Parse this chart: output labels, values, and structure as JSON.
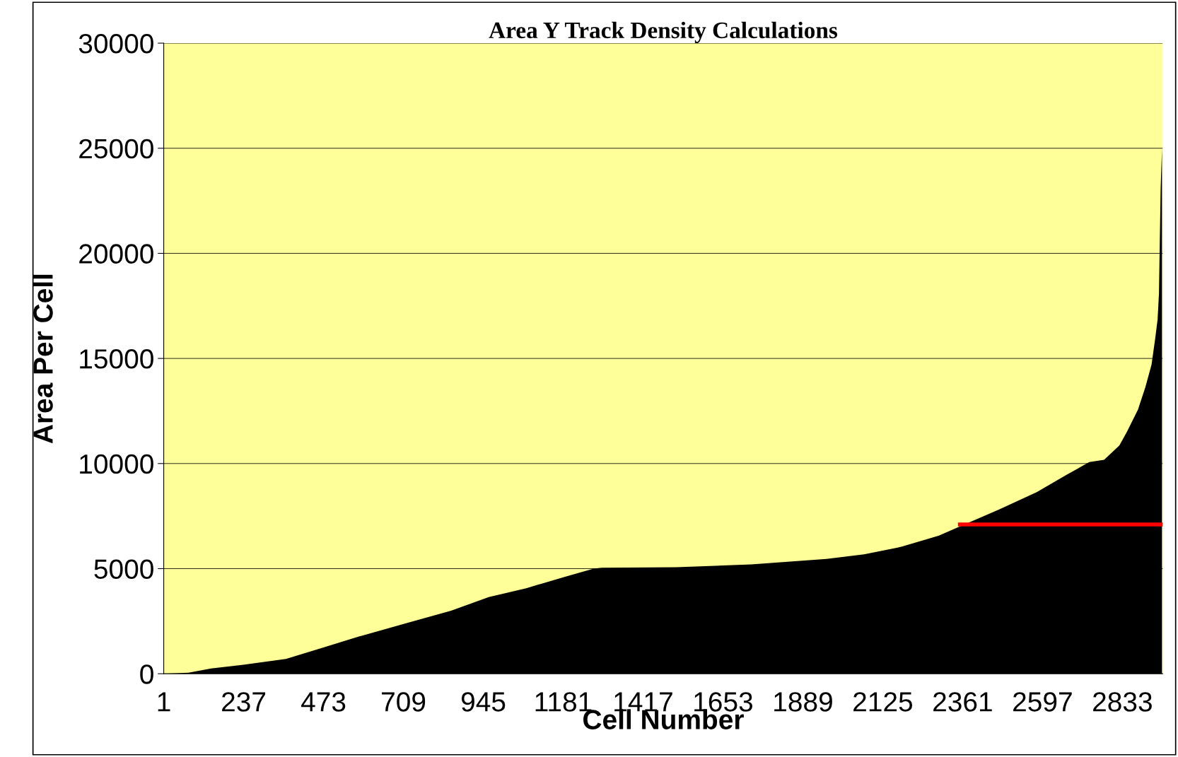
{
  "chart_data": {
    "type": "area",
    "title": "Area Y Track Density Calculations",
    "xlabel": "Cell Number",
    "ylabel": "Area Per Cell",
    "series": [
      {
        "color": "#000000",
        "x": [
          1,
          74,
          141,
          236,
          362,
          473,
          584,
          717,
          850,
          961,
          1072,
          1183,
          1271,
          1294,
          1515,
          1737,
          1959,
          2070,
          2180,
          2291,
          2358,
          2469,
          2580,
          2668,
          2735,
          2779,
          2824,
          2846,
          2879,
          2901,
          2919,
          2930,
          2937,
          2941,
          2946,
          2950
        ],
        "values": [
          0,
          50,
          250,
          430,
          700,
          1250,
          1800,
          2400,
          3000,
          3650,
          4070,
          4600,
          5000,
          5040,
          5070,
          5200,
          5460,
          5680,
          6040,
          6570,
          7040,
          7820,
          8640,
          9460,
          10070,
          10180,
          10860,
          11500,
          12570,
          13640,
          14700,
          15960,
          16860,
          18100,
          23100,
          25000
        ]
      },
      {
        "type": "line",
        "color": "#ff0000",
        "x": [
          2353,
          2952
        ],
        "values": [
          7100,
          7100
        ]
      }
    ],
    "xlim": [
      1,
      2952
    ],
    "xticks": [
      1,
      237,
      473,
      709,
      945,
      1181,
      1417,
      1653,
      1889,
      2125,
      2361,
      2597,
      2833
    ],
    "ylim": [
      0,
      30000
    ],
    "yticks": [
      0,
      5000,
      10000,
      15000,
      20000,
      25000,
      30000
    ],
    "grid": "y",
    "legend": false
  }
}
